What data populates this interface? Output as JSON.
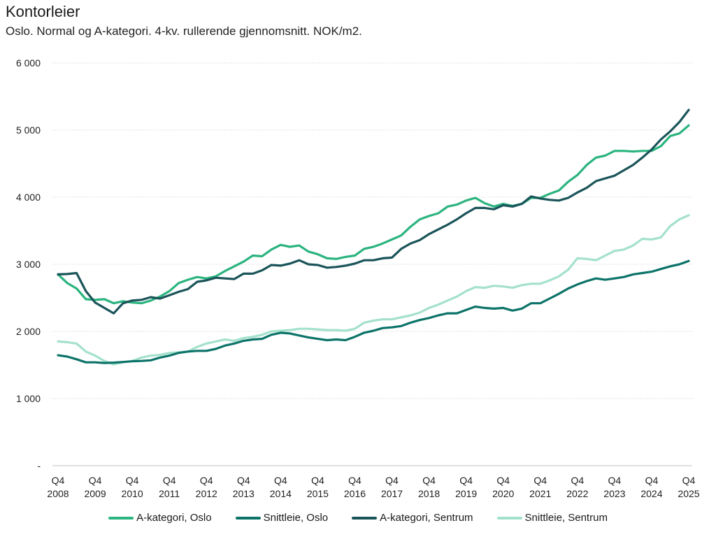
{
  "chart_data": {
    "type": "line",
    "title": "Kontorleier",
    "subtitle": "Oslo. Normal og A-kategori. 4-kv. rullerende gjennomsnitt. NOK/m2.",
    "xlabel": "",
    "ylabel": "",
    "ylim": [
      0,
      6000
    ],
    "yticks": [
      {
        "value": 0,
        "label": "-"
      },
      {
        "value": 1000,
        "label": "1 000"
      },
      {
        "value": 2000,
        "label": "2 000"
      },
      {
        "value": 3000,
        "label": "3 000"
      },
      {
        "value": 4000,
        "label": "4 000"
      },
      {
        "value": 5000,
        "label": "5 000"
      },
      {
        "value": 6000,
        "label": "6 000"
      }
    ],
    "grid": true,
    "legend_position": "bottom",
    "x_start": "Q4 2008",
    "x_end": "Q4 2025",
    "x_frequency": "quarterly",
    "xticks": [
      {
        "index": 0,
        "line1": "Q4",
        "line2": "2008"
      },
      {
        "index": 4,
        "line1": "Q4",
        "line2": "2009"
      },
      {
        "index": 8,
        "line1": "Q4",
        "line2": "2010"
      },
      {
        "index": 12,
        "line1": "Q4",
        "line2": "2011"
      },
      {
        "index": 16,
        "line1": "Q4",
        "line2": "2012"
      },
      {
        "index": 20,
        "line1": "Q4",
        "line2": "2013"
      },
      {
        "index": 24,
        "line1": "Q4",
        "line2": "2014"
      },
      {
        "index": 28,
        "line1": "Q4",
        "line2": "2015"
      },
      {
        "index": 32,
        "line1": "Q4",
        "line2": "2016"
      },
      {
        "index": 36,
        "line1": "Q4",
        "line2": "2017"
      },
      {
        "index": 40,
        "line1": "Q4",
        "line2": "2018"
      },
      {
        "index": 44,
        "line1": "Q4",
        "line2": "2019"
      },
      {
        "index": 48,
        "line1": "Q4",
        "line2": "2020"
      },
      {
        "index": 52,
        "line1": "Q4",
        "line2": "2021"
      },
      {
        "index": 56,
        "line1": "Q4",
        "line2": "2022"
      },
      {
        "index": 60,
        "line1": "Q4",
        "line2": "2023"
      },
      {
        "index": 64,
        "line1": "Q4",
        "line2": "2024"
      },
      {
        "index": 68,
        "line1": "Q4",
        "line2": "2025"
      }
    ],
    "series": [
      {
        "name": "A-kategori, Oslo",
        "color": "#2bb47f",
        "values": [
          2850,
          2720,
          2640,
          2480,
          2470,
          2480,
          2420,
          2450,
          2430,
          2420,
          2460,
          2520,
          2600,
          2720,
          2770,
          2810,
          2790,
          2820,
          2900,
          2970,
          3040,
          3130,
          3120,
          3220,
          3290,
          3260,
          3280,
          3190,
          3150,
          3090,
          3080,
          3110,
          3130,
          3230,
          3260,
          3310,
          3370,
          3430,
          3560,
          3670,
          3720,
          3760,
          3860,
          3890,
          3950,
          3990,
          3910,
          3860,
          3900,
          3870,
          3900,
          3990,
          3990,
          4050,
          4100,
          4230,
          4330,
          4480,
          4590,
          4620,
          4690,
          4690,
          4680,
          4690,
          4690,
          4760,
          4910,
          4950,
          5070
        ]
      },
      {
        "name": "Snittleie, Oslo",
        "color": "#0c7369",
        "values": [
          1645,
          1625,
          1585,
          1540,
          1540,
          1530,
          1535,
          1545,
          1555,
          1560,
          1570,
          1610,
          1640,
          1680,
          1700,
          1710,
          1710,
          1740,
          1790,
          1820,
          1860,
          1880,
          1890,
          1950,
          1980,
          1970,
          1940,
          1910,
          1890,
          1870,
          1880,
          1870,
          1920,
          1980,
          2010,
          2050,
          2060,
          2080,
          2130,
          2170,
          2200,
          2240,
          2270,
          2270,
          2320,
          2370,
          2350,
          2340,
          2350,
          2310,
          2340,
          2420,
          2420,
          2490,
          2560,
          2640,
          2700,
          2750,
          2790,
          2770,
          2790,
          2810,
          2850,
          2870,
          2890,
          2930,
          2970,
          3000,
          3050
        ]
      },
      {
        "name": "A-kategori, Sentrum",
        "color": "#1a5459",
        "values": [
          2850,
          2855,
          2870,
          2600,
          2430,
          2350,
          2270,
          2420,
          2460,
          2470,
          2510,
          2490,
          2540,
          2590,
          2630,
          2740,
          2760,
          2800,
          2790,
          2780,
          2860,
          2860,
          2910,
          2990,
          2980,
          3010,
          3060,
          3000,
          2990,
          2950,
          2960,
          2980,
          3010,
          3060,
          3060,
          3090,
          3100,
          3230,
          3310,
          3360,
          3450,
          3520,
          3590,
          3670,
          3760,
          3840,
          3840,
          3820,
          3880,
          3860,
          3900,
          4010,
          3980,
          3960,
          3950,
          3990,
          4070,
          4140,
          4240,
          4280,
          4320,
          4400,
          4480,
          4590,
          4710,
          4860,
          4980,
          5120,
          5300
        ]
      },
      {
        "name": "Snittleie, Sentrum",
        "color": "#a4e1cc",
        "values": [
          1850,
          1840,
          1820,
          1700,
          1640,
          1560,
          1510,
          1540,
          1560,
          1610,
          1640,
          1650,
          1680,
          1690,
          1700,
          1770,
          1820,
          1850,
          1880,
          1860,
          1900,
          1920,
          1950,
          2000,
          2010,
          2020,
          2040,
          2040,
          2030,
          2020,
          2020,
          2010,
          2040,
          2130,
          2160,
          2180,
          2180,
          2210,
          2240,
          2280,
          2350,
          2400,
          2460,
          2520,
          2600,
          2660,
          2650,
          2680,
          2670,
          2650,
          2690,
          2710,
          2710,
          2760,
          2820,
          2920,
          3090,
          3080,
          3060,
          3130,
          3200,
          3220,
          3280,
          3380,
          3370,
          3400,
          3570,
          3670,
          3730
        ]
      }
    ]
  }
}
